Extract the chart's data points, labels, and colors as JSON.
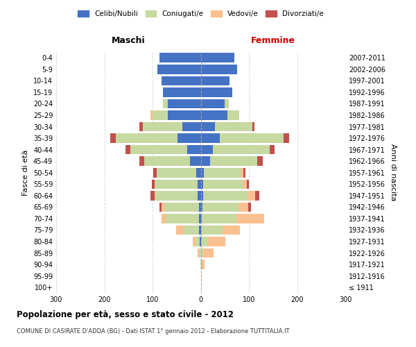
{
  "age_groups": [
    "100+",
    "95-99",
    "90-94",
    "85-89",
    "80-84",
    "75-79",
    "70-74",
    "65-69",
    "60-64",
    "55-59",
    "50-54",
    "45-49",
    "40-44",
    "35-39",
    "30-34",
    "25-29",
    "20-24",
    "15-19",
    "10-14",
    "5-9",
    "0-4"
  ],
  "birth_years": [
    "≤ 1911",
    "1912-1916",
    "1917-1921",
    "1922-1926",
    "1927-1931",
    "1932-1936",
    "1937-1941",
    "1942-1946",
    "1947-1951",
    "1952-1956",
    "1957-1961",
    "1962-1966",
    "1967-1971",
    "1972-1976",
    "1977-1981",
    "1982-1986",
    "1987-1991",
    "1992-1996",
    "1997-2001",
    "2002-2006",
    "2007-2011"
  ],
  "male_celibi": [
    0,
    0,
    0,
    0,
    2,
    3,
    4,
    4,
    6,
    6,
    9,
    22,
    28,
    48,
    38,
    68,
    68,
    78,
    82,
    90,
    85
  ],
  "male_coniugati": [
    0,
    0,
    1,
    4,
    9,
    32,
    68,
    72,
    88,
    88,
    82,
    95,
    118,
    128,
    82,
    32,
    10,
    0,
    0,
    0,
    0
  ],
  "male_vedovi": [
    0,
    0,
    0,
    2,
    6,
    16,
    9,
    5,
    2,
    2,
    0,
    0,
    0,
    0,
    0,
    5,
    0,
    0,
    0,
    0,
    0
  ],
  "male_divorziati": [
    0,
    0,
    0,
    0,
    0,
    0,
    0,
    5,
    9,
    5,
    8,
    10,
    10,
    12,
    8,
    0,
    0,
    0,
    0,
    0,
    0
  ],
  "female_nubili": [
    0,
    0,
    0,
    0,
    0,
    0,
    2,
    3,
    5,
    5,
    6,
    20,
    25,
    40,
    30,
    55,
    50,
    65,
    60,
    75,
    70
  ],
  "female_coniugate": [
    0,
    1,
    2,
    5,
    15,
    45,
    72,
    76,
    92,
    82,
    77,
    97,
    118,
    132,
    77,
    25,
    8,
    0,
    0,
    0,
    0
  ],
  "female_vedove": [
    0,
    1,
    6,
    22,
    36,
    36,
    58,
    20,
    16,
    8,
    5,
    0,
    0,
    0,
    0,
    0,
    0,
    0,
    0,
    0,
    0
  ],
  "female_divorziate": [
    0,
    0,
    0,
    0,
    0,
    0,
    0,
    5,
    8,
    5,
    5,
    12,
    10,
    12,
    5,
    0,
    0,
    0,
    0,
    0,
    0
  ],
  "color_celibi": "#4472C4",
  "color_coniugati": "#C6D9A0",
  "color_vedovi": "#FAC090",
  "color_divorziati": "#C0504D",
  "legend_labels": [
    "Celibi/Nubili",
    "Coniugati/e",
    "Vedovi/e",
    "Divorziati/e"
  ],
  "title": "Popolazione per età, sesso e stato civile - 2012",
  "subtitle": "COMUNE DI CASIRATE D'ADDA (BG) - Dati ISTAT 1° gennaio 2012 - Elaborazione TUTTITALIA.IT",
  "ylabel_left": "Fasce di età",
  "ylabel_right": "Anni di nascita",
  "header_maschi": "Maschi",
  "header_femmine": "Femmine",
  "xlim": 300,
  "bg_color": "#ffffff",
  "grid_color": "#cccccc"
}
